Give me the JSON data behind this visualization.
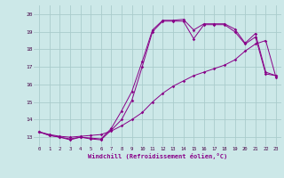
{
  "xlabel": "Windchill (Refroidissement éolien,°C)",
  "background_color": "#cce8e8",
  "grid_color": "#aacccc",
  "line_color": "#880088",
  "xlim": [
    -0.5,
    23.5
  ],
  "ylim": [
    12.5,
    20.5
  ],
  "xticks": [
    0,
    1,
    2,
    3,
    4,
    5,
    6,
    7,
    8,
    9,
    10,
    11,
    12,
    13,
    14,
    15,
    16,
    17,
    18,
    19,
    20,
    21,
    22,
    23
  ],
  "yticks": [
    13,
    14,
    15,
    16,
    17,
    18,
    19,
    20
  ],
  "series1_x": [
    0,
    1,
    2,
    3,
    4,
    5,
    6,
    7,
    8,
    9,
    10,
    11,
    12,
    13,
    14,
    15,
    16,
    17,
    18,
    19,
    20,
    21,
    22,
    23
  ],
  "series1_y": [
    13.3,
    13.1,
    13.0,
    12.85,
    13.0,
    12.9,
    12.85,
    13.4,
    14.0,
    15.1,
    17.0,
    19.0,
    19.6,
    19.6,
    19.6,
    18.6,
    19.4,
    19.4,
    19.4,
    19.0,
    18.3,
    18.7,
    16.6,
    16.5
  ],
  "series2_x": [
    0,
    1,
    2,
    3,
    4,
    5,
    6,
    7,
    8,
    9,
    10,
    11,
    12,
    13,
    14,
    15,
    16,
    17,
    18,
    19,
    20,
    21,
    22,
    23
  ],
  "series2_y": [
    13.3,
    13.15,
    13.05,
    13.0,
    13.05,
    13.1,
    13.15,
    13.35,
    13.65,
    14.0,
    14.4,
    15.0,
    15.5,
    15.9,
    16.2,
    16.5,
    16.7,
    16.9,
    17.1,
    17.4,
    17.9,
    18.3,
    18.5,
    16.4
  ],
  "series3_x": [
    0,
    1,
    2,
    3,
    4,
    5,
    6,
    7,
    8,
    9,
    10,
    11,
    12,
    13,
    14,
    15,
    16,
    17,
    18,
    19,
    20,
    21,
    22,
    23
  ],
  "series3_y": [
    13.3,
    13.1,
    13.0,
    12.9,
    13.0,
    12.95,
    12.9,
    13.5,
    14.5,
    15.6,
    17.3,
    19.1,
    19.65,
    19.65,
    19.7,
    19.1,
    19.45,
    19.45,
    19.45,
    19.15,
    18.35,
    18.9,
    16.7,
    16.5
  ]
}
